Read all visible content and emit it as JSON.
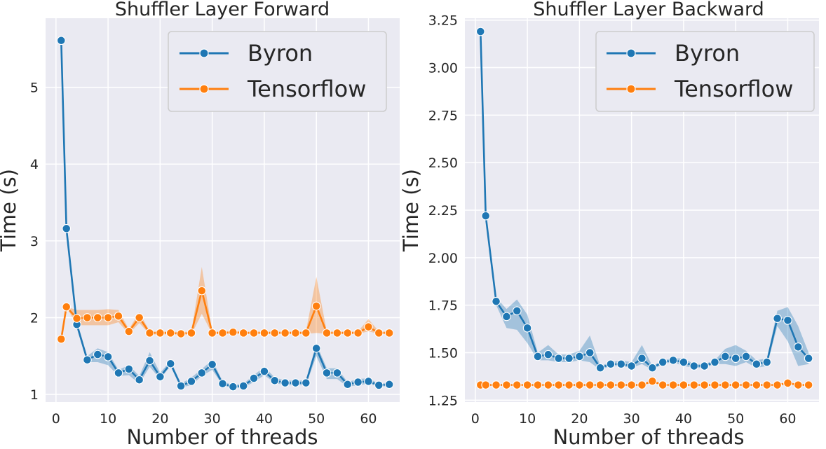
{
  "chart_data": [
    {
      "type": "line",
      "title": "Shuffler Layer Forward",
      "xlabel": "Number of threads",
      "ylabel": "Time (s)",
      "xlim": [
        -2,
        66
      ],
      "ylim": [
        0.9,
        5.9
      ],
      "xticks": [
        0,
        10,
        20,
        30,
        40,
        50,
        60
      ],
      "yticks": [
        1,
        2,
        3,
        4,
        5
      ],
      "grid": true,
      "legend": "top-right",
      "x": [
        1,
        2,
        4,
        6,
        8,
        10,
        12,
        14,
        16,
        18,
        20,
        22,
        24,
        26,
        28,
        30,
        32,
        34,
        36,
        38,
        40,
        42,
        44,
        46,
        48,
        50,
        52,
        54,
        56,
        58,
        60,
        62,
        64
      ],
      "series": [
        {
          "name": "Byron",
          "color": "#1f77b4",
          "values": [
            5.61,
            3.16,
            1.91,
            1.45,
            1.52,
            1.49,
            1.28,
            1.33,
            1.19,
            1.44,
            1.23,
            1.4,
            1.11,
            1.17,
            1.28,
            1.39,
            1.14,
            1.1,
            1.11,
            1.21,
            1.3,
            1.18,
            1.15,
            1.15,
            1.15,
            1.6,
            1.28,
            1.28,
            1.13,
            1.16,
            1.17,
            1.12,
            1.13
          ],
          "lower": [
            5.61,
            3.16,
            1.86,
            1.42,
            1.42,
            1.38,
            1.24,
            1.25,
            1.14,
            1.36,
            1.2,
            1.37,
            1.09,
            1.12,
            1.24,
            1.32,
            1.12,
            1.08,
            1.09,
            1.16,
            1.25,
            1.15,
            1.12,
            1.12,
            1.12,
            1.5,
            1.2,
            1.2,
            1.1,
            1.12,
            1.14,
            1.1,
            1.11
          ],
          "upper": [
            5.61,
            3.16,
            1.96,
            1.5,
            1.6,
            1.55,
            1.32,
            1.38,
            1.24,
            1.55,
            1.28,
            1.44,
            1.14,
            1.22,
            1.33,
            1.45,
            1.17,
            1.12,
            1.14,
            1.25,
            1.36,
            1.22,
            1.18,
            1.18,
            1.18,
            1.66,
            1.34,
            1.34,
            1.16,
            1.2,
            1.21,
            1.14,
            1.15
          ]
        },
        {
          "name": "Tensorflow",
          "color": "#ff7f0e",
          "values": [
            1.72,
            2.14,
            1.99,
            2.0,
            2.0,
            2.0,
            2.02,
            1.82,
            2.0,
            1.8,
            1.8,
            1.8,
            1.79,
            1.8,
            2.35,
            1.8,
            1.8,
            1.81,
            1.8,
            1.8,
            1.8,
            1.8,
            1.8,
            1.8,
            1.8,
            2.15,
            1.8,
            1.8,
            1.8,
            1.8,
            1.88,
            1.8,
            1.8
          ],
          "lower": [
            1.72,
            2.14,
            1.9,
            1.9,
            1.9,
            1.9,
            1.94,
            1.79,
            1.93,
            1.78,
            1.78,
            1.78,
            1.78,
            1.78,
            2.05,
            1.79,
            1.79,
            1.79,
            1.79,
            1.79,
            1.79,
            1.79,
            1.79,
            1.79,
            1.79,
            1.8,
            1.79,
            1.79,
            1.79,
            1.79,
            1.82,
            1.79,
            1.79
          ],
          "upper": [
            1.72,
            2.14,
            2.1,
            2.1,
            2.1,
            2.11,
            2.1,
            1.85,
            2.07,
            1.82,
            1.82,
            1.82,
            1.81,
            1.82,
            2.66,
            1.82,
            1.82,
            1.83,
            1.82,
            1.82,
            1.82,
            1.82,
            1.82,
            1.82,
            1.82,
            2.53,
            1.82,
            1.82,
            1.82,
            1.82,
            1.98,
            1.82,
            1.82
          ]
        }
      ]
    },
    {
      "type": "line",
      "title": "Shuffler Layer Backward",
      "xlabel": "Number of threads",
      "ylabel": "Time (s)",
      "xlim": [
        -2,
        66
      ],
      "ylim": [
        1.24,
        3.26
      ],
      "xticks": [
        0,
        10,
        20,
        30,
        40,
        50,
        60
      ],
      "yticks": [
        1.25,
        1.5,
        1.75,
        2.0,
        2.25,
        2.5,
        2.75,
        3.0,
        3.25
      ],
      "ytick_labels": [
        "1.25",
        "1.50",
        "1.75",
        "2.00",
        "2.25",
        "2.50",
        "2.75",
        "3.00",
        "3.25"
      ],
      "grid": true,
      "legend": "top-right",
      "x": [
        1,
        2,
        4,
        6,
        8,
        10,
        12,
        14,
        16,
        18,
        20,
        22,
        24,
        26,
        28,
        30,
        32,
        34,
        36,
        38,
        40,
        42,
        44,
        46,
        48,
        50,
        52,
        54,
        56,
        58,
        60,
        62,
        64
      ],
      "series": [
        {
          "name": "Byron",
          "color": "#1f77b4",
          "values": [
            3.19,
            2.22,
            1.77,
            1.69,
            1.72,
            1.63,
            1.48,
            1.49,
            1.47,
            1.47,
            1.48,
            1.5,
            1.42,
            1.44,
            1.44,
            1.43,
            1.47,
            1.42,
            1.45,
            1.46,
            1.45,
            1.43,
            1.43,
            1.45,
            1.48,
            1.47,
            1.48,
            1.44,
            1.45,
            1.68,
            1.67,
            1.53,
            1.47
          ],
          "lower": [
            3.19,
            2.22,
            1.75,
            1.63,
            1.62,
            1.55,
            1.46,
            1.46,
            1.45,
            1.45,
            1.46,
            1.45,
            1.41,
            1.43,
            1.43,
            1.42,
            1.44,
            1.41,
            1.44,
            1.45,
            1.43,
            1.42,
            1.42,
            1.44,
            1.44,
            1.43,
            1.45,
            1.42,
            1.43,
            1.64,
            1.56,
            1.43,
            1.44
          ],
          "upper": [
            3.19,
            2.22,
            1.79,
            1.73,
            1.78,
            1.7,
            1.5,
            1.54,
            1.49,
            1.49,
            1.51,
            1.59,
            1.43,
            1.45,
            1.46,
            1.45,
            1.54,
            1.43,
            1.46,
            1.47,
            1.47,
            1.44,
            1.44,
            1.46,
            1.52,
            1.54,
            1.51,
            1.46,
            1.47,
            1.72,
            1.74,
            1.64,
            1.5
          ]
        },
        {
          "name": "Tensorflow",
          "color": "#ff7f0e",
          "values": [
            1.33,
            1.33,
            1.33,
            1.33,
            1.33,
            1.33,
            1.33,
            1.33,
            1.33,
            1.33,
            1.33,
            1.33,
            1.33,
            1.33,
            1.33,
            1.33,
            1.33,
            1.35,
            1.33,
            1.33,
            1.33,
            1.33,
            1.33,
            1.33,
            1.33,
            1.33,
            1.33,
            1.33,
            1.33,
            1.33,
            1.34,
            1.33,
            1.33
          ],
          "lower": [
            1.33,
            1.33,
            1.33,
            1.33,
            1.33,
            1.33,
            1.33,
            1.33,
            1.33,
            1.33,
            1.33,
            1.33,
            1.33,
            1.33,
            1.33,
            1.33,
            1.33,
            1.34,
            1.33,
            1.33,
            1.33,
            1.33,
            1.33,
            1.33,
            1.33,
            1.33,
            1.33,
            1.33,
            1.33,
            1.33,
            1.33,
            1.33,
            1.33
          ],
          "upper": [
            1.33,
            1.33,
            1.33,
            1.33,
            1.33,
            1.33,
            1.33,
            1.33,
            1.33,
            1.33,
            1.33,
            1.33,
            1.33,
            1.33,
            1.33,
            1.33,
            1.33,
            1.36,
            1.33,
            1.33,
            1.33,
            1.33,
            1.33,
            1.33,
            1.33,
            1.33,
            1.33,
            1.33,
            1.33,
            1.33,
            1.35,
            1.33,
            1.33
          ]
        }
      ]
    }
  ]
}
